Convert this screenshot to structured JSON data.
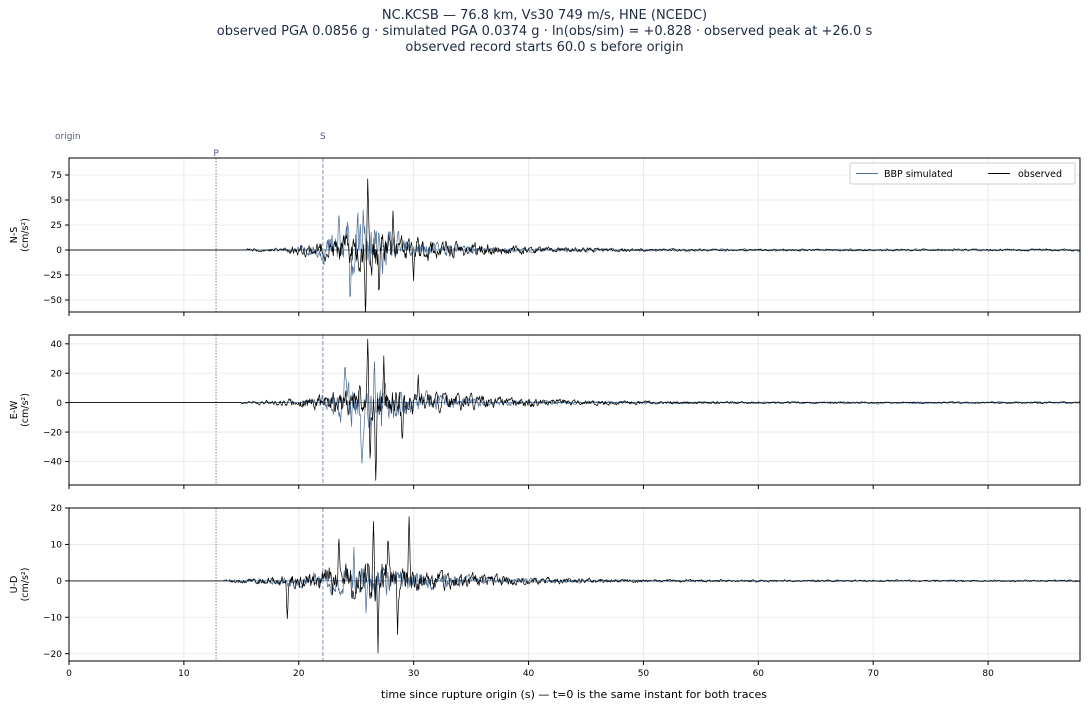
{
  "title": {
    "line1": "NC.KCSB  —  76.8 km, Vs30 749 m/s, HNE (NCEDC)",
    "line2": "observed PGA 0.0856 g   ·   simulated PGA 0.0374 g   ·   ln(obs/sim) = +0.828   ·   observed peak at +26.0 s",
    "line3": "observed record starts 60.0 s before origin"
  },
  "colors": {
    "simulated": "#4a6e96",
    "observed": "#000000",
    "p_marker": "#808080",
    "s_marker": "#7f94b8",
    "marker_label": "#4a5a82",
    "grid": "#e6e6e6",
    "axis": "#000000"
  },
  "chart_data": {
    "type": "line",
    "xlabel": "time since rupture origin (s)   —   t=0 is the same instant for both traces",
    "xlim": [
      0,
      88
    ],
    "xticks": [
      0,
      10,
      20,
      30,
      40,
      50,
      60,
      70,
      80
    ],
    "legend": {
      "placement": "top-right",
      "entries": [
        "BBP simulated",
        "observed"
      ]
    },
    "markers": {
      "origin": {
        "label": "origin",
        "t": 0
      },
      "p": {
        "label": "P",
        "t": 12.8
      },
      "s": {
        "label": "S",
        "t": 22.1
      }
    },
    "grid": true,
    "panels": [
      {
        "name": "ns",
        "ylabel_top": "N-S",
        "ylabel_bottom": "(cm/s²)",
        "ylim": [
          -62,
          92
        ],
        "yticks": [
          -50,
          -25,
          0,
          25,
          50,
          75
        ],
        "series": [
          {
            "name": "BBP simulated",
            "color": "#4a6e96",
            "onset": 19.5,
            "peak_t": 24.5,
            "peak_amp": 26,
            "decay": 4.5,
            "seed": 11,
            "peaks": [
              {
                "t": 23.5,
                "v": 31
              },
              {
                "t": 24.5,
                "v": -26
              },
              {
                "t": 25.6,
                "v": 28
              },
              {
                "t": 27.3,
                "v": -22
              }
            ]
          },
          {
            "name": "observed",
            "color": "#000000",
            "onset": 15.5,
            "peak_t": 26.0,
            "peak_amp": 16,
            "decay": 7,
            "seed": 23,
            "peaks": [
              {
                "t": 25.8,
                "v": -54
              },
              {
                "t": 26.0,
                "v": 84
              },
              {
                "t": 26.3,
                "v": -30
              },
              {
                "t": 27.0,
                "v": -45
              },
              {
                "t": 28.2,
                "v": 30
              },
              {
                "t": 30.0,
                "v": -25
              }
            ]
          }
        ]
      },
      {
        "name": "ew",
        "ylabel_top": "E-W",
        "ylabel_bottom": "(cm/s²)",
        "ylim": [
          -56,
          46
        ],
        "yticks": [
          -40,
          -20,
          0,
          20,
          40
        ],
        "series": [
          {
            "name": "BBP simulated",
            "color": "#4a6e96",
            "onset": 20,
            "peak_t": 25,
            "peak_amp": 15,
            "decay": 5,
            "seed": 37,
            "peaks": [
              {
                "t": 24.0,
                "v": 25
              },
              {
                "t": 25.5,
                "v": -33
              },
              {
                "t": 26.6,
                "v": 33
              },
              {
                "t": 27.2,
                "v": -22
              }
            ]
          },
          {
            "name": "observed",
            "color": "#000000",
            "onset": 15,
            "peak_t": 26.5,
            "peak_amp": 10,
            "decay": 8,
            "seed": 51,
            "peaks": [
              {
                "t": 26.0,
                "v": 41
              },
              {
                "t": 26.2,
                "v": -35
              },
              {
                "t": 26.7,
                "v": -50
              },
              {
                "t": 27.4,
                "v": 30
              },
              {
                "t": 29.0,
                "v": -24
              },
              {
                "t": 30.4,
                "v": 21
              }
            ]
          }
        ]
      },
      {
        "name": "ud",
        "ylabel_top": "U-D",
        "ylabel_bottom": "(cm/s²)",
        "ylim": [
          -22,
          20
        ],
        "yticks": [
          -20,
          -10,
          0,
          10,
          20
        ],
        "series": [
          {
            "name": "BBP simulated",
            "color": "#4a6e96",
            "onset": 13.5,
            "peak_t": 26,
            "peak_amp": 4,
            "decay": 6,
            "seed": 67,
            "peaks": [
              {
                "t": 24.8,
                "v": 7
              },
              {
                "t": 25.9,
                "v": -7.5
              }
            ]
          },
          {
            "name": "observed",
            "color": "#000000",
            "onset": 14,
            "peak_t": 25.5,
            "peak_amp": 5,
            "decay": 7,
            "seed": 79,
            "peaks": [
              {
                "t": 19.0,
                "v": -11.5
              },
              {
                "t": 26.5,
                "v": 18.5
              },
              {
                "t": 26.9,
                "v": -19.8
              },
              {
                "t": 27.8,
                "v": 12
              },
              {
                "t": 28.6,
                "v": -12
              },
              {
                "t": 29.6,
                "v": 14
              },
              {
                "t": 23.5,
                "v": 12
              }
            ]
          }
        ]
      }
    ]
  }
}
